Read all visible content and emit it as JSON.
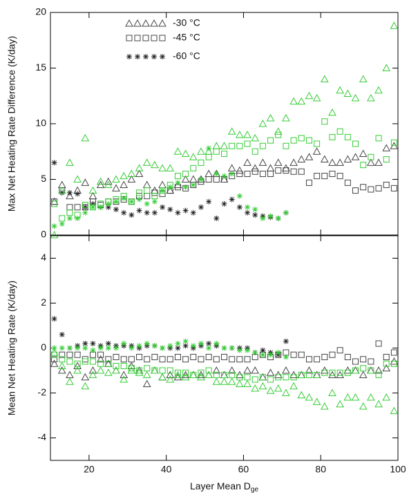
{
  "chart_data": [
    {
      "type": "scatter",
      "ylabel": "Max Net Heating Rate Difference (K/day)",
      "xlim": [
        10,
        100
      ],
      "xticks": [
        20,
        40,
        60,
        80,
        100
      ],
      "xtick_labels": false,
      "ylim": [
        0,
        20
      ],
      "yticks": [
        0,
        5,
        10,
        15,
        20
      ],
      "legend": "upper left",
      "series": [
        {
          "name": "-30 °C",
          "color": "#444444",
          "marker": "triangle",
          "x": [
            11,
            13,
            15,
            17,
            19,
            21,
            23,
            25,
            27,
            29,
            31,
            33,
            35,
            37,
            39,
            41,
            43,
            45,
            47,
            49,
            51,
            53,
            55,
            57,
            59,
            61,
            63,
            65,
            67,
            69,
            71,
            73,
            75,
            77,
            79,
            81,
            83,
            85,
            87,
            89,
            91,
            93,
            95,
            97,
            99
          ],
          "values": [
            3.0,
            4.5,
            3.5,
            4.0,
            4.7,
            3.5,
            4.5,
            4.8,
            4.2,
            4.5,
            5.0,
            5.5,
            4.5,
            4.0,
            4.5,
            4.0,
            4.5,
            5.0,
            5.0,
            5.0,
            5.5,
            5.5,
            5.0,
            6.0,
            5.8,
            6.5,
            6.0,
            6.5,
            6.0,
            6.5,
            6.0,
            6.5,
            6.8,
            7.0,
            7.5,
            6.8,
            6.5,
            6.5,
            6.8,
            7.0,
            7.3,
            6.5,
            6.5,
            7.8,
            8.0
          ]
        },
        {
          "name": "-45 °C",
          "color": "#444444",
          "marker": "square",
          "x": [
            11,
            13,
            15,
            17,
            19,
            21,
            23,
            25,
            27,
            29,
            31,
            33,
            35,
            37,
            39,
            41,
            43,
            45,
            47,
            49,
            51,
            53,
            55,
            57,
            59,
            61,
            63,
            65,
            67,
            69,
            71,
            73,
            75,
            77,
            79,
            81,
            83,
            85,
            87,
            89,
            91,
            93,
            95,
            97,
            99
          ],
          "values": [
            3.0,
            4.0,
            2.5,
            2.5,
            2.5,
            3.0,
            2.7,
            3.0,
            3.0,
            3.2,
            3.0,
            3.5,
            3.5,
            3.8,
            3.7,
            4.0,
            4.3,
            4.2,
            4.5,
            4.8,
            5.0,
            5.0,
            5.0,
            5.3,
            5.5,
            5.5,
            5.7,
            5.5,
            5.5,
            5.8,
            5.8,
            5.7,
            5.7,
            4.7,
            5.3,
            5.3,
            5.5,
            5.3,
            4.7,
            4.0,
            4.3,
            4.1,
            4.2,
            4.5,
            4.2
          ]
        },
        {
          "name": "-60 °C",
          "color": "#222222",
          "marker": "asterisk",
          "x": [
            11,
            13,
            15,
            17,
            19,
            21,
            23,
            25,
            27,
            29,
            31,
            33,
            35,
            37,
            39,
            41,
            43,
            45,
            47,
            49,
            51,
            53,
            55,
            57,
            59,
            61,
            63,
            65,
            67,
            69,
            71
          ],
          "values": [
            6.5,
            3.8,
            3.8,
            3.7,
            2.5,
            2.8,
            2.5,
            2.5,
            2.3,
            2.0,
            1.8,
            2.2,
            2.0,
            2.0,
            2.5,
            2.3,
            2.0,
            2.2,
            2.0,
            2.5,
            3.0,
            1.5,
            2.8,
            3.2,
            2.5,
            2.0,
            1.8,
            1.7,
            1.6,
            1.5,
            2.0
          ]
        },
        {
          "color": "#33cc33",
          "marker": "triangle",
          "x": [
            11,
            13,
            15,
            17,
            19,
            21,
            23,
            25,
            27,
            29,
            31,
            33,
            35,
            37,
            39,
            41,
            43,
            45,
            47,
            49,
            51,
            53,
            55,
            57,
            59,
            61,
            63,
            65,
            67,
            69,
            71,
            73,
            75,
            77,
            79,
            81,
            83,
            85,
            87,
            89,
            91,
            93,
            95,
            97,
            99
          ],
          "values": [
            0.0,
            4.0,
            6.5,
            5.0,
            8.7,
            4.0,
            4.8,
            4.5,
            5.0,
            5.3,
            5.5,
            6.0,
            6.5,
            6.3,
            6.0,
            6.0,
            7.5,
            7.3,
            7.0,
            7.5,
            7.5,
            8.0,
            8.0,
            9.3,
            9.0,
            9.0,
            8.7,
            10.0,
            10.5,
            9.3,
            10.5,
            12.0,
            12.0,
            12.5,
            12.3,
            14.0,
            11.0,
            13.0,
            12.7,
            12.3,
            14.0,
            12.3,
            13.0,
            15.0,
            18.8
          ]
        },
        {
          "color": "#33cc33",
          "marker": "square",
          "x": [
            11,
            13,
            15,
            17,
            19,
            21,
            23,
            25,
            27,
            29,
            31,
            33,
            35,
            37,
            39,
            41,
            43,
            45,
            47,
            49,
            51,
            53,
            55,
            57,
            59,
            61,
            63,
            65,
            67,
            69,
            71,
            73,
            75,
            77,
            79,
            81,
            83,
            85,
            87,
            89,
            91,
            93,
            95,
            97,
            99
          ],
          "values": [
            2.8,
            1.5,
            2.0,
            1.8,
            2.7,
            2.5,
            2.8,
            3.0,
            3.2,
            3.5,
            3.0,
            3.8,
            4.0,
            3.5,
            4.0,
            4.5,
            5.3,
            5.5,
            6.0,
            6.5,
            7.0,
            7.5,
            7.3,
            8.0,
            8.0,
            8.2,
            7.5,
            8.0,
            8.5,
            9.0,
            8.0,
            8.5,
            8.7,
            8.5,
            8.2,
            10.2,
            8.8,
            9.3,
            8.8,
            8.2,
            6.3,
            7.0,
            8.7,
            6.8,
            8.3
          ]
        },
        {
          "color": "#33cc33",
          "marker": "asterisk",
          "x": [
            11,
            13,
            15,
            17,
            19,
            21,
            23,
            25,
            27,
            29,
            31,
            33,
            35,
            37,
            39,
            41,
            43,
            45,
            47,
            49,
            51,
            53,
            55,
            57,
            59,
            61,
            63,
            65,
            67,
            69,
            71
          ],
          "values": [
            0.8,
            1.0,
            1.5,
            1.5,
            2.0,
            2.5,
            2.5,
            2.8,
            3.0,
            3.3,
            3.0,
            3.2,
            2.8,
            3.0,
            4.0,
            4.3,
            4.7,
            4.3,
            4.5,
            5.0,
            7.8,
            5.5,
            5.3,
            5.5,
            3.5,
            2.5,
            2.3,
            1.5,
            1.7,
            1.5,
            2.0
          ]
        }
      ]
    },
    {
      "type": "scatter",
      "ylabel": "Mean Net Heating Rate (K/day)",
      "xlabel": "Layer Mean D",
      "xlabel_subscript": "ge",
      "xlim": [
        10,
        100
      ],
      "xticks": [
        20,
        40,
        60,
        80,
        100
      ],
      "xtick_labels": true,
      "ylim": [
        -5,
        5
      ],
      "yticks": [
        -4,
        -2,
        0,
        2,
        4
      ],
      "series": [
        {
          "color": "#444444",
          "marker": "triangle",
          "x": [
            11,
            13,
            15,
            17,
            19,
            21,
            23,
            25,
            27,
            29,
            31,
            33,
            35,
            37,
            39,
            41,
            43,
            45,
            47,
            49,
            51,
            53,
            55,
            57,
            59,
            61,
            63,
            65,
            67,
            69,
            71,
            73,
            75,
            77,
            79,
            81,
            83,
            85,
            87,
            89,
            91,
            93,
            95,
            97,
            99
          ],
          "values": [
            -0.7,
            -1.0,
            -1.2,
            -0.8,
            -1.3,
            -1.0,
            -0.5,
            -0.7,
            -1.0,
            -1.2,
            -0.8,
            -1.0,
            -1.6,
            -1.0,
            -1.3,
            -1.2,
            -1.3,
            -1.2,
            -1.2,
            -1.2,
            -1.2,
            -1.0,
            -1.2,
            -1.0,
            -1.2,
            -1.0,
            -1.0,
            -1.3,
            -1.1,
            -1.2,
            -1.0,
            -1.2,
            -1.2,
            -1.0,
            -1.2,
            -1.0,
            -1.2,
            -1.2,
            -1.0,
            -1.0,
            -1.2,
            -1.0,
            -1.0,
            -0.9,
            -0.6
          ]
        },
        {
          "color": "#444444",
          "marker": "square",
          "x": [
            11,
            13,
            15,
            17,
            19,
            21,
            23,
            25,
            27,
            29,
            31,
            33,
            35,
            37,
            39,
            41,
            43,
            45,
            47,
            49,
            51,
            53,
            55,
            57,
            59,
            61,
            63,
            65,
            67,
            69,
            71,
            73,
            75,
            77,
            79,
            81,
            83,
            85,
            87,
            89,
            91,
            93,
            95,
            97,
            99
          ],
          "values": [
            -0.5,
            -0.3,
            -0.3,
            -0.3,
            -0.5,
            -0.3,
            -0.3,
            -0.5,
            -0.4,
            -0.5,
            -0.5,
            -0.4,
            -0.5,
            -0.4,
            -0.5,
            -0.5,
            -0.4,
            -0.5,
            -0.4,
            -0.5,
            -0.4,
            -0.5,
            -0.4,
            -0.5,
            -0.5,
            -0.5,
            -0.4,
            -0.3,
            -0.4,
            -0.3,
            -0.2,
            -0.3,
            -0.3,
            -0.5,
            -0.5,
            -0.4,
            -0.3,
            -0.1,
            -0.4,
            -0.6,
            -0.5,
            -0.6,
            0.2,
            -0.4,
            -0.2
          ]
        },
        {
          "color": "#222222",
          "marker": "asterisk",
          "x": [
            11,
            13,
            15,
            17,
            19,
            21,
            23,
            25,
            27,
            29,
            31,
            33,
            35,
            37,
            39,
            41,
            43,
            45,
            47,
            49,
            51,
            53,
            55,
            57,
            59,
            61,
            63,
            65,
            67,
            69,
            71
          ],
          "values": [
            1.3,
            0.6,
            0.0,
            0.1,
            0.2,
            0.2,
            0.1,
            0.2,
            0.1,
            0.1,
            0.1,
            0.0,
            0.1,
            0.1,
            0.0,
            0.0,
            0.0,
            0.1,
            0.0,
            0.1,
            0.2,
            0.1,
            0.0,
            0.0,
            0.0,
            0.0,
            -0.2,
            -0.1,
            -0.2,
            -0.3,
            0.3
          ]
        },
        {
          "color": "#33cc33",
          "marker": "triangle",
          "x": [
            11,
            13,
            15,
            17,
            19,
            21,
            23,
            25,
            27,
            29,
            31,
            33,
            35,
            37,
            39,
            41,
            43,
            45,
            47,
            49,
            51,
            53,
            55,
            57,
            59,
            61,
            63,
            65,
            67,
            69,
            71,
            73,
            75,
            77,
            79,
            81,
            83,
            85,
            87,
            89,
            91,
            93,
            95,
            97,
            99
          ],
          "values": [
            -0.2,
            -0.8,
            -1.5,
            -1.0,
            -1.7,
            -1.2,
            -1.0,
            -1.1,
            -1.0,
            -1.4,
            -1.0,
            -1.1,
            -1.2,
            -1.0,
            -1.3,
            -1.4,
            -1.2,
            -1.3,
            -1.2,
            -1.3,
            -1.2,
            -1.5,
            -1.5,
            -1.5,
            -1.6,
            -1.6,
            -1.8,
            -1.7,
            -1.9,
            -1.8,
            -2.0,
            -1.7,
            -2.1,
            -2.2,
            -2.4,
            -2.6,
            -2.0,
            -2.5,
            -2.2,
            -2.2,
            -2.6,
            -2.2,
            -2.5,
            -2.2,
            -2.8
          ]
        },
        {
          "color": "#33cc33",
          "marker": "square",
          "x": [
            11,
            13,
            15,
            17,
            19,
            21,
            23,
            25,
            27,
            29,
            31,
            33,
            35,
            37,
            39,
            41,
            43,
            45,
            47,
            49,
            51,
            53,
            55,
            57,
            59,
            61,
            63,
            65,
            67,
            69,
            71,
            73,
            75,
            77,
            79,
            81,
            83,
            85,
            87,
            89,
            91,
            93,
            95,
            97,
            99
          ],
          "values": [
            -0.3,
            -0.5,
            -0.6,
            -0.7,
            -0.6,
            -0.6,
            -0.7,
            -0.7,
            -0.8,
            -0.8,
            -0.9,
            -1.0,
            -0.9,
            -1.0,
            -1.0,
            -1.0,
            -1.1,
            -1.1,
            -1.2,
            -1.1,
            -1.0,
            -1.2,
            -1.2,
            -1.2,
            -1.3,
            -1.3,
            -1.4,
            -1.3,
            -1.4,
            -1.3,
            -1.3,
            -1.3,
            -1.2,
            -1.2,
            -1.2,
            -1.1,
            -1.1,
            -1.1,
            -1.1,
            -1.0,
            -0.9,
            -1.0,
            -1.2,
            -0.7,
            -0.7
          ]
        },
        {
          "color": "#33cc33",
          "marker": "asterisk",
          "x": [
            11,
            13,
            15,
            17,
            19,
            21,
            23,
            25,
            27,
            29,
            31,
            33,
            35,
            37,
            39,
            41,
            43,
            45,
            47,
            49,
            51,
            53,
            55,
            57,
            59,
            61,
            63,
            65,
            67,
            69,
            71
          ],
          "values": [
            0.0,
            0.0,
            0.0,
            0.0,
            0.0,
            -0.1,
            0.0,
            0.0,
            0.0,
            0.2,
            0.0,
            0.1,
            0.2,
            0.1,
            0.0,
            0.1,
            0.2,
            0.3,
            0.1,
            0.2,
            0.0,
            0.2,
            0.0,
            0.0,
            -0.1,
            -0.1,
            -0.2,
            -0.3,
            -0.3,
            -0.2,
            -0.4
          ]
        }
      ]
    }
  ]
}
